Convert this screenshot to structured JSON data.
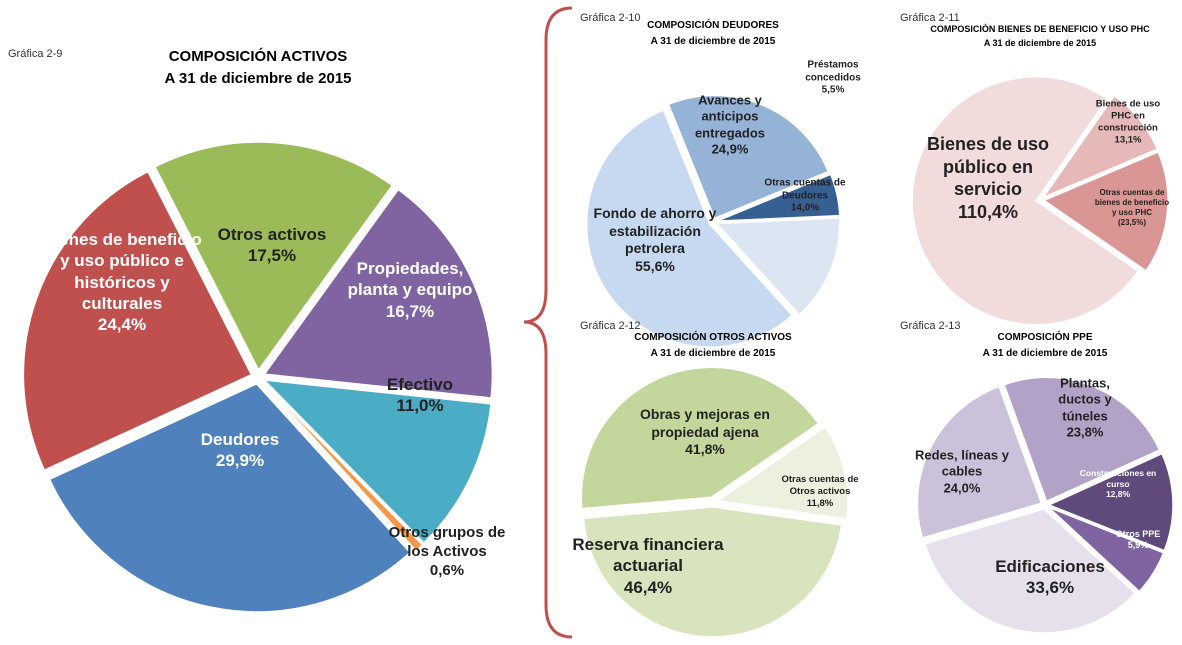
{
  "chart_data": [
    {
      "type": "pie",
      "caption": "Gráfica 2-9",
      "title": "COMPOSICIÓN ACTIVOS",
      "subtitle": "A 31 de diciembre de 2015",
      "categories": [
        "Otros activos",
        "Propiedades, planta y equipo",
        "Efectivo",
        "Otros grupos de los Activos",
        "Deudores",
        "Bienes de beneficio y uso público e históricos y culturales"
      ],
      "values": [
        17.5,
        16.7,
        11.0,
        0.6,
        29.9,
        24.4
      ],
      "value_labels": [
        "17,5%",
        "16,7%",
        "11,0%",
        "0,6%",
        "29,9%",
        "24,4%"
      ],
      "colors": [
        "#9bbb59",
        "#8064a2",
        "#4bacc6",
        "#f79646",
        "#4f81bd",
        "#c0504d"
      ]
    },
    {
      "type": "pie",
      "caption": "Gráfica 2-10",
      "title": "COMPOSICIÓN  DEUDORES",
      "subtitle": "A 31 de diciembre de 2015",
      "categories": [
        "Avances y anticipos entregados",
        "Préstamos concedidos",
        "Otras cuentas de Deudores",
        "Fondo de ahorro y estabilización petrolera"
      ],
      "values": [
        24.9,
        5.5,
        14.0,
        55.6
      ],
      "value_labels": [
        "24,9%",
        "5,5%",
        "14,0%",
        "55,6%"
      ],
      "colors": [
        "#95b3d7",
        "#376092",
        "#dce6f2",
        "#c6d9f1"
      ]
    },
    {
      "type": "pie",
      "caption": "Gráfica 2-11",
      "title": "COMPOSICIÓN BIENES DE BENEFICIO Y USO PHC",
      "subtitle": "A 31 de diciembre de 2015",
      "categories": [
        "Bienes de uso público en servicio",
        "Bienes de uso PHC en construcción",
        "Otras cuentas de bienes de beneficio y uso PHC"
      ],
      "values": [
        110.4,
        13.1,
        -23.5
      ],
      "value_labels": [
        "110,4%",
        "13,1%",
        "(23,5%)"
      ],
      "colors": [
        "#f2dcdb",
        "#e6b9b8",
        "#d99694"
      ]
    },
    {
      "type": "pie",
      "caption": "Gráfica 2-12",
      "title": "COMPOSICIÓN  OTROS ACTIVOS",
      "subtitle": "A 31 de diciembre de 2015",
      "categories": [
        "Obras y mejoras en propiedad ajena",
        "Otras cuentas de Otros activos",
        "Reserva financiera actuarial"
      ],
      "values": [
        41.8,
        11.8,
        46.4
      ],
      "value_labels": [
        "41,8%",
        "11,8%",
        "46,4%"
      ],
      "colors": [
        "#c3d69b",
        "#ebf1de",
        "#d7e4bd"
      ]
    },
    {
      "type": "pie",
      "caption": "Gráfica 2-13",
      "title": "COMPOSICIÓN  PPE",
      "subtitle": "A 31 de diciembre de 2015",
      "categories": [
        "Plantas, ductos y túneles",
        "Construcciones en curso",
        "Otros PPE",
        "Edificaciones",
        "Redes, líneas y cables"
      ],
      "values": [
        23.8,
        12.8,
        5.9,
        33.6,
        24.0
      ],
      "value_labels": [
        "23,8%",
        "12,8%",
        "5,9%",
        "33,6%",
        "24,0%"
      ],
      "colors": [
        "#b3a2c7",
        "#604a7b",
        "#8064a2",
        "#e6e0ec",
        "#ccc1da"
      ]
    }
  ]
}
